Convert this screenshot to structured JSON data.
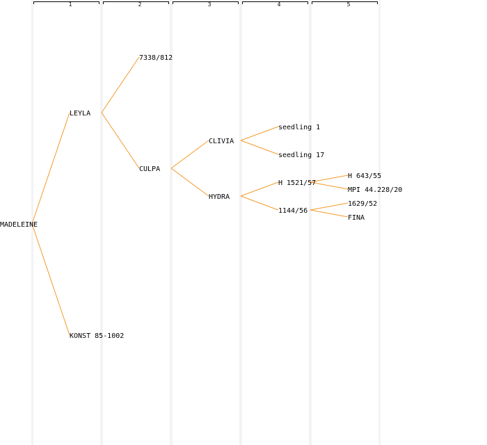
{
  "generations": [
    "1",
    "2",
    "3",
    "4",
    "5"
  ],
  "colors": {
    "edge": "#f39a2b",
    "band": "#f3f3f3",
    "text": "#000000",
    "background": "#ffffff"
  },
  "tree": {
    "label": "MADELEINE",
    "children": [
      {
        "label": "LEYLA",
        "children": [
          {
            "label": "7338/812",
            "children": []
          },
          {
            "label": "CULPA",
            "children": [
              {
                "label": "CLIVIA",
                "children": [
                  {
                    "label": "seedling 1",
                    "children": []
                  },
                  {
                    "label": "seedling 17",
                    "children": []
                  }
                ]
              },
              {
                "label": "HYDRA",
                "children": [
                  {
                    "label": "H 1521/57",
                    "children": [
                      {
                        "label": "H 643/55",
                        "children": []
                      },
                      {
                        "label": "MPI 44.228/20",
                        "children": []
                      }
                    ]
                  },
                  {
                    "label": "1144/56",
                    "children": [
                      {
                        "label": "1629/52",
                        "children": []
                      },
                      {
                        "label": "FINA",
                        "children": []
                      }
                    ]
                  }
                ]
              }
            ]
          }
        ]
      },
      {
        "label": "KONST 85-1002",
        "children": []
      }
    ]
  }
}
